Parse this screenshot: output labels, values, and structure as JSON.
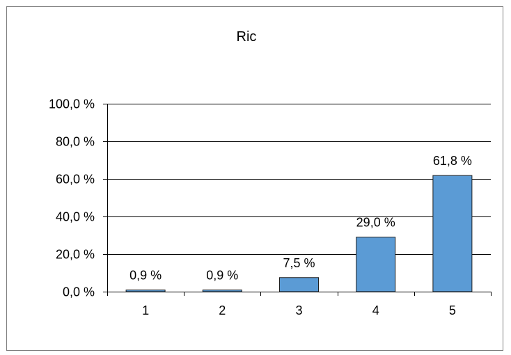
{
  "chart_data": {
    "type": "bar",
    "title": "Ric",
    "xlabel": "",
    "ylabel": "",
    "categories": [
      "1",
      "2",
      "3",
      "4",
      "5"
    ],
    "values": [
      0.9,
      0.9,
      7.5,
      29.0,
      61.8
    ],
    "data_labels": [
      "0,9 %",
      "0,9 %",
      "7,5 %",
      "29,0 %",
      "61,8 %"
    ],
    "ylim": [
      0,
      100
    ],
    "yticks": [
      0,
      20,
      40,
      60,
      80,
      100
    ],
    "ytick_labels": [
      "0,0 %",
      "20,0 %",
      "40,0 %",
      "60,0 %",
      "80,0 %",
      "100,0 %"
    ],
    "grid": true,
    "legend": "none",
    "bar_color": "#5b9bd5",
    "bar_edge_color": "#1f1f1f",
    "gridline_color": "#000000"
  }
}
